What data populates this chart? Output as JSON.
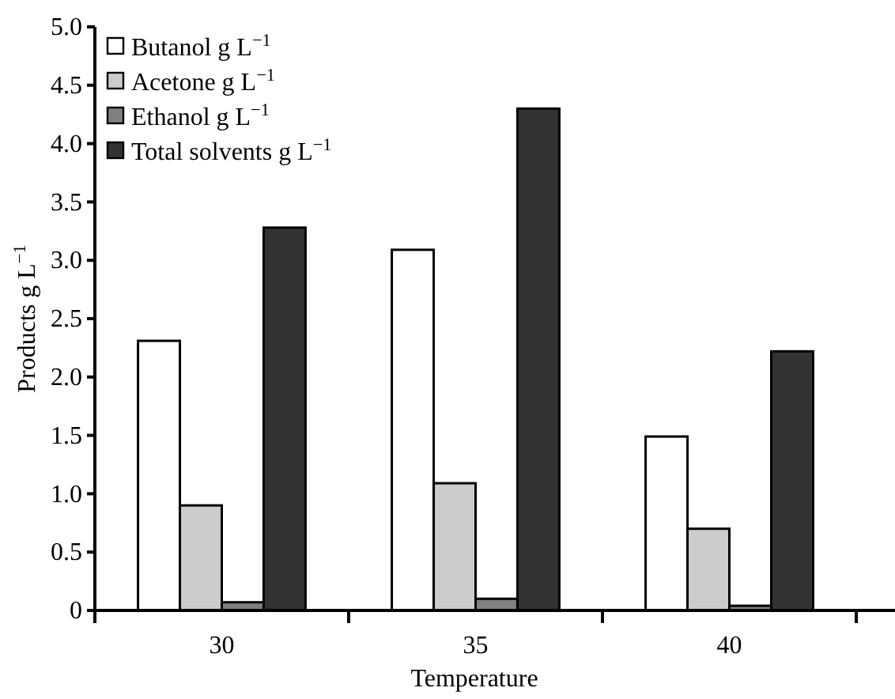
{
  "chart_data": {
    "type": "bar",
    "xlabel": "Temperature",
    "ylabel": "Products g L$^{−1}$",
    "categories": [
      "30",
      "35",
      "40"
    ],
    "series": [
      {
        "name": "Butanol g L$^{−1}$",
        "color": "#ffffff",
        "values": [
          2.31,
          3.09,
          1.49
        ]
      },
      {
        "name": "Acetone g L$^{−1}$",
        "color": "#cccccc",
        "values": [
          0.9,
          1.09,
          0.7
        ]
      },
      {
        "name": "Ethanol g L$^{−1}$",
        "color": "#808080",
        "values": [
          0.07,
          0.1,
          0.04
        ]
      },
      {
        "name": "Total solvents g L$^{−1}$",
        "color": "#333333",
        "values": [
          3.28,
          4.3,
          2.22
        ]
      }
    ],
    "ylim": [
      0,
      5
    ],
    "yticks": [
      {
        "value": 0,
        "label": "0"
      },
      {
        "value": 0.5,
        "label": "0.5"
      },
      {
        "value": 1,
        "label": "1.0"
      },
      {
        "value": 1.5,
        "label": "1.5"
      },
      {
        "value": 2,
        "label": "2.0"
      },
      {
        "value": 2.5,
        "label": "2.5"
      },
      {
        "value": 3,
        "label": "3.0"
      },
      {
        "value": 3.5,
        "label": "3.5"
      },
      {
        "value": 4,
        "label": "4.0"
      },
      {
        "value": 4.5,
        "label": "4.5"
      },
      {
        "value": 5,
        "label": "5.0"
      }
    ],
    "grid": false,
    "legend": "top left"
  }
}
